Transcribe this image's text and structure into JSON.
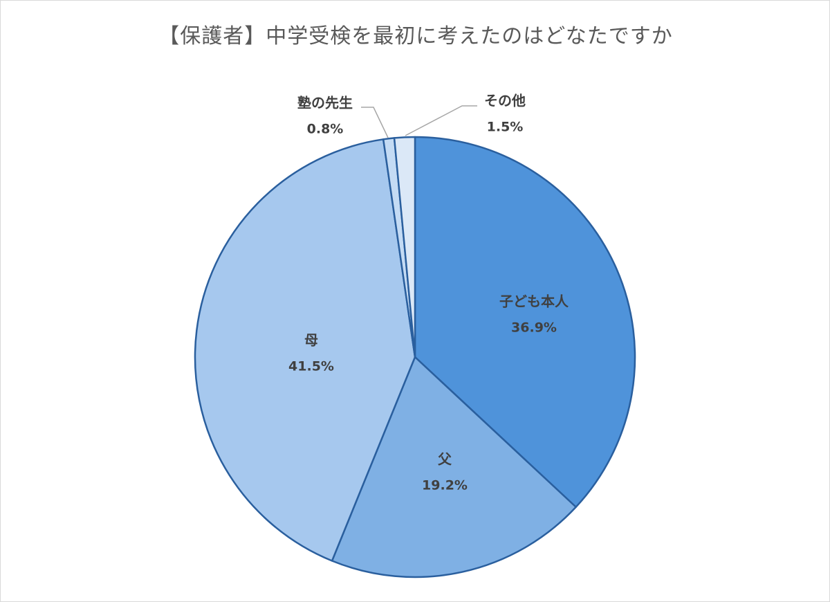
{
  "chart_data": {
    "type": "pie",
    "title": "【保護者】中学受検を最初に考えたのはどなたですか",
    "slices": [
      {
        "label": "子ども本人",
        "value": 36.9,
        "value_label": "36.9%",
        "color": "#4f93da"
      },
      {
        "label": "父",
        "value": 19.2,
        "value_label": "19.2%",
        "color": "#7fb0e4"
      },
      {
        "label": "母",
        "value": 41.5,
        "value_label": "41.5%",
        "color": "#a6c8ee"
      },
      {
        "label": "塾の先生",
        "value": 0.8,
        "value_label": "0.8%",
        "color": "#c4dbf4"
      },
      {
        "label": "その他",
        "value": 1.5,
        "value_label": "1.5%",
        "color": "#dbe8f7"
      }
    ],
    "start_angle": "12 o'clock",
    "direction": "clockwise",
    "slice_border_color": "#2a5f9e",
    "legend": "none"
  }
}
